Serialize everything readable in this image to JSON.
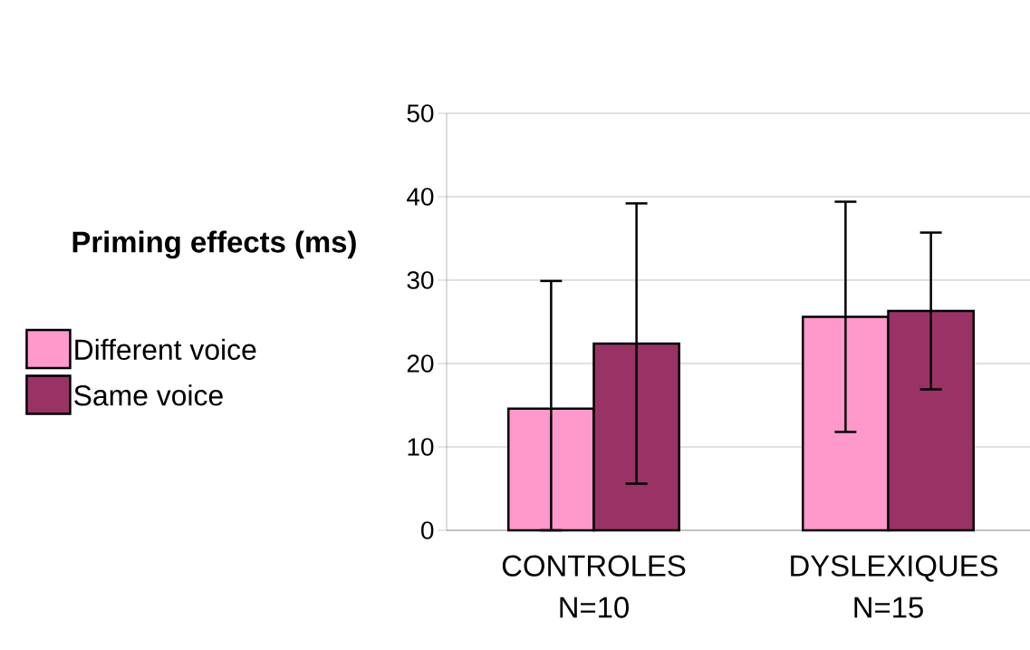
{
  "chart_data": {
    "type": "bar",
    "ylabel": "Priming effects (ms)",
    "categories": [
      "CONTROLES N=10",
      "DYSLEXIQUES N=15"
    ],
    "series": [
      {
        "name": "Different voice",
        "color": "#ff99cc",
        "values": [
          14.6,
          25.6
        ],
        "errors": [
          [
            0,
            29.9
          ],
          13.8
        ]
      },
      {
        "name": "Same voice",
        "color": "#993366",
        "values": [
          22.4,
          26.3
        ],
        "errors": [
          16.8,
          9.4
        ]
      }
    ],
    "ylim": [
      0,
      50
    ],
    "yticks": [
      0,
      10,
      20,
      30,
      40,
      50
    ],
    "grid": "y",
    "legend": "left"
  }
}
